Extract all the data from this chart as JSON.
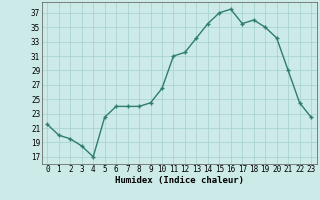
{
  "x": [
    0,
    1,
    2,
    3,
    4,
    5,
    6,
    7,
    8,
    9,
    10,
    11,
    12,
    13,
    14,
    15,
    16,
    17,
    18,
    19,
    20,
    21,
    22,
    23
  ],
  "y": [
    21.5,
    20.0,
    19.5,
    18.5,
    17.0,
    22.5,
    24.0,
    24.0,
    24.0,
    24.5,
    26.5,
    31.0,
    31.5,
    33.5,
    35.5,
    37.0,
    37.5,
    35.5,
    36.0,
    35.0,
    33.5,
    29.0,
    24.5,
    22.5
  ],
  "line_color": "#2e7d6e",
  "marker": "+",
  "marker_size": 3,
  "bg_color": "#cceae8",
  "grid_color": "#aad4d0",
  "xlabel": "Humidex (Indice chaleur)",
  "ylabel_ticks": [
    17,
    19,
    21,
    23,
    25,
    27,
    29,
    31,
    33,
    35,
    37
  ],
  "xlim": [
    -0.5,
    23.5
  ],
  "ylim": [
    16.0,
    38.5
  ],
  "line_width": 1.0,
  "tick_fontsize": 5.5,
  "xlabel_fontsize": 6.5,
  "marker_edge_width": 1.0
}
